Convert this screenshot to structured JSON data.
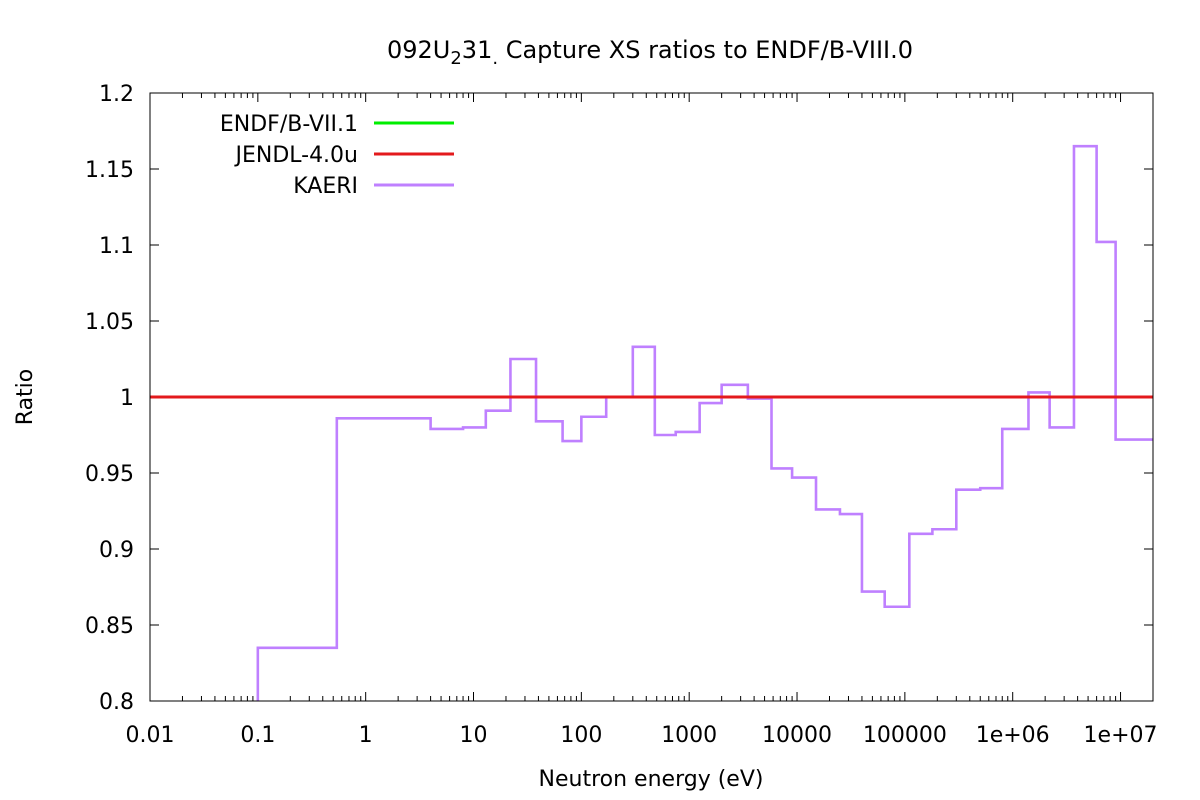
{
  "chart_data": {
    "type": "line",
    "title": {
      "prefix": "092U",
      "sub": "2",
      "mid": "31",
      "sub2": ".",
      "suffix": " Capture XS ratios to ENDF/B-VIII.0"
    },
    "xlabel": "Neutron energy (eV)",
    "ylabel": "Ratio",
    "xscale": "log",
    "xlim": [
      0.01,
      20000000
    ],
    "ylim": [
      0.8,
      1.2
    ],
    "x_ticks": [
      {
        "value": 0.01,
        "label": "0.01"
      },
      {
        "value": 0.1,
        "label": "0.1"
      },
      {
        "value": 1,
        "label": "1"
      },
      {
        "value": 10,
        "label": "10"
      },
      {
        "value": 100,
        "label": "100"
      },
      {
        "value": 1000,
        "label": "1000"
      },
      {
        "value": 10000,
        "label": "10000"
      },
      {
        "value": 100000,
        "label": "100000"
      },
      {
        "value": 1000000,
        "label": "1e+06"
      },
      {
        "value": 10000000,
        "label": "1e+07"
      }
    ],
    "y_ticks": [
      {
        "value": 0.8,
        "label": "0.8"
      },
      {
        "value": 0.85,
        "label": "0.85"
      },
      {
        "value": 0.9,
        "label": "0.9"
      },
      {
        "value": 0.95,
        "label": "0.95"
      },
      {
        "value": 1.0,
        "label": "1"
      },
      {
        "value": 1.05,
        "label": "1.05"
      },
      {
        "value": 1.1,
        "label": "1.1"
      },
      {
        "value": 1.15,
        "label": "1.15"
      },
      {
        "value": 1.2,
        "label": "1.2"
      }
    ],
    "grid": false,
    "legend_position": "top-left",
    "series": [
      {
        "name": "ENDF/B-VII.1",
        "color": "#00ee00",
        "style": "line",
        "x": [
          0.01,
          20000000
        ],
        "y": [
          1.0,
          1.0
        ]
      },
      {
        "name": "JENDL-4.0u",
        "color": "#e31a1c",
        "style": "line",
        "x": [
          0.01,
          20000000
        ],
        "y": [
          1.0,
          1.0
        ]
      },
      {
        "name": "KAERI",
        "color": "#bf80ff",
        "style": "step",
        "edges": [
          0.1,
          0.54,
          4,
          8,
          13,
          22,
          38,
          67,
          100,
          170,
          300,
          480,
          750,
          1250,
          2000,
          3500,
          5800,
          9000,
          15000,
          25000,
          40000,
          65000,
          110000,
          180000,
          300000,
          500000,
          800000,
          1400000,
          2200000,
          3700000,
          6000000,
          9000000,
          20000000
        ],
        "values": [
          0.835,
          0.986,
          0.979,
          0.98,
          0.991,
          1.025,
          0.984,
          0.971,
          0.987,
          1.0,
          1.033,
          0.975,
          0.977,
          0.996,
          1.008,
          0.999,
          0.953,
          0.947,
          0.926,
          0.923,
          0.872,
          0.862,
          0.91,
          0.913,
          0.939,
          0.94,
          0.979,
          1.003,
          0.98,
          1.165,
          1.102,
          0.972
        ]
      }
    ]
  }
}
